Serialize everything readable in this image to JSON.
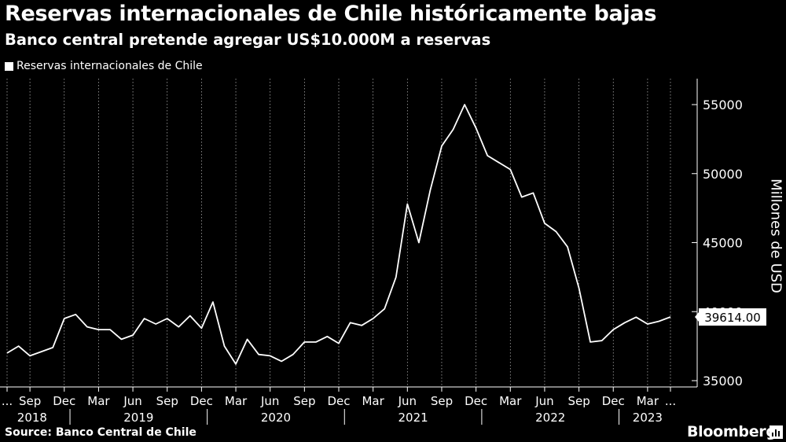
{
  "header": {
    "title": "Reservas internacionales de Chile históricamente bajas",
    "subtitle": "Banco central pretende agregar US$10.000M a reservas"
  },
  "legend": {
    "label": "Reservas internacionales de Chile"
  },
  "footer": {
    "source": "Source: Banco Central de Chile",
    "brand": "Bloomberg"
  },
  "colors": {
    "background": "#000000",
    "line": "#ffffff",
    "grid": "#ffffff"
  },
  "chart_data": {
    "type": "line",
    "title": "Reservas internacionales de Chile históricamente bajas",
    "subtitle": "Banco central pretende agregar US$10.000M a reservas",
    "ylabel": "Millones de USD",
    "xlabel": "",
    "ylim": [
      34500,
      56000
    ],
    "yticks": [
      35000,
      40000,
      45000,
      50000,
      55000
    ],
    "grid": "vertical dashed",
    "legend_position": "top-left",
    "last_value_label": "39614.00",
    "x_ticks": [
      {
        "date": "2018-07",
        "label": "..."
      },
      {
        "date": "2018-09",
        "label": "Sep"
      },
      {
        "date": "2018-12",
        "label": "Dec"
      },
      {
        "date": "2019-03",
        "label": "Mar"
      },
      {
        "date": "2019-06",
        "label": "Jun"
      },
      {
        "date": "2019-09",
        "label": "Sep"
      },
      {
        "date": "2019-12",
        "label": "Dec"
      },
      {
        "date": "2020-03",
        "label": "Mar"
      },
      {
        "date": "2020-06",
        "label": "Jun"
      },
      {
        "date": "2020-09",
        "label": "Sep"
      },
      {
        "date": "2020-12",
        "label": "Dec"
      },
      {
        "date": "2021-03",
        "label": "Mar"
      },
      {
        "date": "2021-06",
        "label": "Jun"
      },
      {
        "date": "2021-09",
        "label": "Sep"
      },
      {
        "date": "2021-12",
        "label": "Dec"
      },
      {
        "date": "2022-03",
        "label": "Mar"
      },
      {
        "date": "2022-06",
        "label": "Jun"
      },
      {
        "date": "2022-09",
        "label": "Sep"
      },
      {
        "date": "2022-12",
        "label": "Dec"
      },
      {
        "date": "2023-03",
        "label": "Mar"
      },
      {
        "date": "2023-05",
        "label": "..."
      }
    ],
    "year_labels": [
      {
        "label": "2018",
        "from": "2018-07",
        "to": "2018-12"
      },
      {
        "label": "2019",
        "from": "2019-01",
        "to": "2019-12"
      },
      {
        "label": "2020",
        "from": "2020-01",
        "to": "2020-12"
      },
      {
        "label": "2021",
        "from": "2021-01",
        "to": "2021-12"
      },
      {
        "label": "2022",
        "from": "2022-01",
        "to": "2022-12"
      },
      {
        "label": "2023",
        "from": "2023-01",
        "to": "2023-05"
      }
    ],
    "series": [
      {
        "name": "Reservas internacionales de Chile",
        "x": [
          "2018-07",
          "2018-08",
          "2018-09",
          "2018-10",
          "2018-11",
          "2018-12",
          "2019-01",
          "2019-02",
          "2019-03",
          "2019-04",
          "2019-05",
          "2019-06",
          "2019-07",
          "2019-08",
          "2019-09",
          "2019-10",
          "2019-11",
          "2019-12",
          "2020-01",
          "2020-02",
          "2020-03",
          "2020-04",
          "2020-05",
          "2020-06",
          "2020-07",
          "2020-08",
          "2020-09",
          "2020-10",
          "2020-11",
          "2020-12",
          "2021-01",
          "2021-02",
          "2021-03",
          "2021-04",
          "2021-05",
          "2021-06",
          "2021-07",
          "2021-08",
          "2021-09",
          "2021-10",
          "2021-11",
          "2021-12",
          "2022-01",
          "2022-02",
          "2022-03",
          "2022-04",
          "2022-05",
          "2022-06",
          "2022-07",
          "2022-08",
          "2022-09",
          "2022-10",
          "2022-11",
          "2022-12",
          "2023-01",
          "2023-02",
          "2023-03",
          "2023-04",
          "2023-05"
        ],
        "values": [
          37000,
          37500,
          36800,
          37100,
          37400,
          39500,
          39800,
          38900,
          38700,
          38700,
          38000,
          38300,
          39500,
          39100,
          39500,
          38900,
          39700,
          38800,
          40700,
          37500,
          36200,
          38000,
          36900,
          36800,
          36400,
          36900,
          37800,
          37800,
          38200,
          37700,
          39200,
          39000,
          39500,
          40200,
          42500,
          47800,
          45000,
          48800,
          52000,
          53200,
          55000,
          53300,
          51300,
          50800,
          50300,
          48300,
          48600,
          46400,
          45800,
          44700,
          41700,
          37800,
          37900,
          38700,
          39200,
          39600,
          39100,
          39300,
          39614
        ]
      }
    ]
  }
}
